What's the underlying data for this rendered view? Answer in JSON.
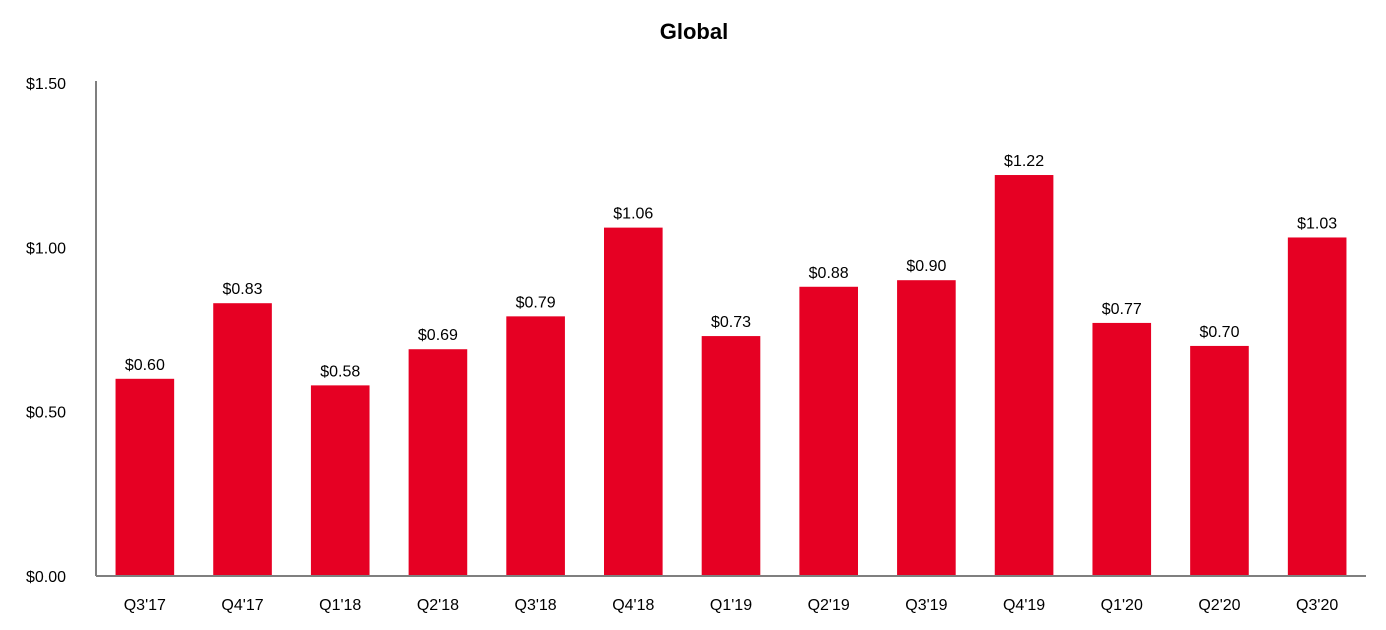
{
  "chart_data": {
    "type": "bar",
    "title": "Global",
    "xlabel": "",
    "ylabel": "",
    "ylim": [
      0,
      1.5
    ],
    "yticks": [
      0,
      0.5,
      1.0,
      1.5
    ],
    "ytick_labels": [
      "$0.00",
      "$0.50",
      "$1.00",
      "$1.50"
    ],
    "grid": false,
    "legend": "none",
    "categories": [
      "Q3'17",
      "Q4'17",
      "Q1'18",
      "Q2'18",
      "Q3'18",
      "Q4'18",
      "Q1'19",
      "Q2'19",
      "Q3'19",
      "Q4'19",
      "Q1'20",
      "Q2'20",
      "Q3'20"
    ],
    "values": [
      0.6,
      0.83,
      0.58,
      0.69,
      0.79,
      1.06,
      0.73,
      0.88,
      0.9,
      1.22,
      0.77,
      0.7,
      1.03
    ],
    "data_labels": [
      "$0.60",
      "$0.83",
      "$0.58",
      "$0.69",
      "$0.79",
      "$1.06",
      "$0.73",
      "$0.88",
      "$0.90",
      "$1.22",
      "$0.77",
      "$0.70",
      "$1.03"
    ],
    "colors": {
      "bar": "#e60023",
      "axis": "#7f7f7f",
      "text": "#000000"
    }
  }
}
